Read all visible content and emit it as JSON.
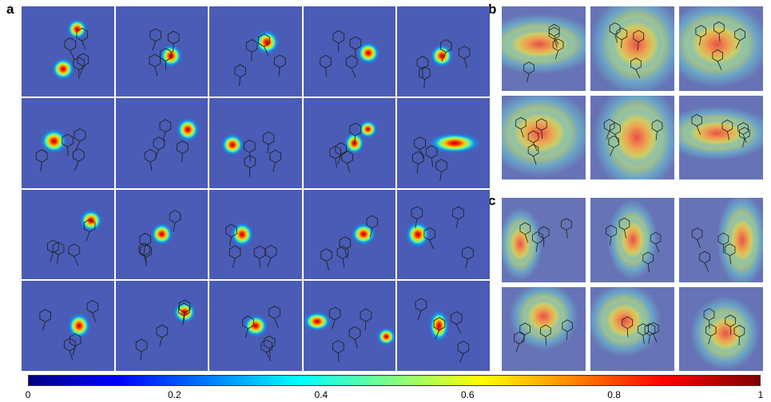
{
  "panels": {
    "a": {
      "label": "a",
      "rows": 4,
      "cols": 5
    },
    "b": {
      "label": "b",
      "rows": 2,
      "cols": 3
    },
    "c": {
      "label": "c",
      "rows": 2,
      "cols": 3
    }
  },
  "colorbar": {
    "colormap": "jet",
    "range": [
      0,
      1
    ],
    "ticks": [
      "0",
      "0.2",
      "0.4",
      "0.6",
      "0.8",
      "1"
    ]
  }
}
